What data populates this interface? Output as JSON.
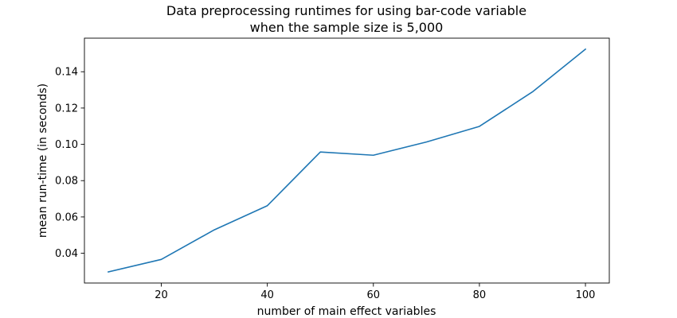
{
  "chart_data": {
    "type": "line",
    "title": [
      "Data preprocessing runtimes for using bar-code variable",
      "when the sample size is 5,000"
    ],
    "xlabel": "number of main effect variables",
    "ylabel": "mean run-time (in seconds)",
    "x": [
      10,
      20,
      30,
      40,
      50,
      60,
      70,
      80,
      90,
      100
    ],
    "series": [
      {
        "values": [
          0.0297,
          0.0366,
          0.0529,
          0.0662,
          0.0958,
          0.094,
          0.1013,
          0.1099,
          0.1289,
          0.1524
        ]
      }
    ],
    "xticks": [
      20,
      40,
      60,
      80,
      100
    ],
    "xtick_labels": [
      "20",
      "40",
      "60",
      "80",
      "100"
    ],
    "yticks": [
      0.04,
      0.06,
      0.08,
      0.1,
      0.12,
      0.14
    ],
    "ytick_labels": [
      "0.04",
      "0.06",
      "0.08",
      "0.10",
      "0.12",
      "0.14"
    ],
    "xlim": [
      5.5,
      104.5
    ],
    "ylim": [
      0.0236,
      0.1585
    ],
    "line_color": "#1f77b4",
    "grid": false
  }
}
